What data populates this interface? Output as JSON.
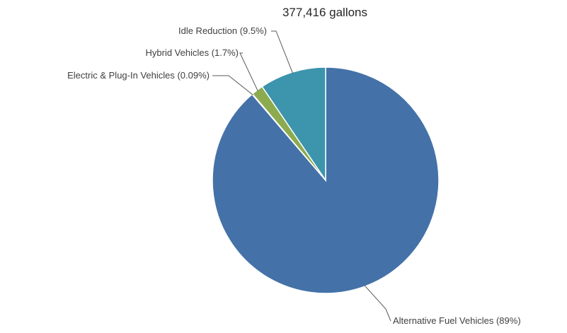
{
  "chart_data": {
    "type": "pie",
    "title": "377,416 gallons",
    "slices": [
      {
        "label": "Alternative Fuel Vehicles (89%)",
        "value": 89,
        "color": "#4472a8"
      },
      {
        "label": "Electric & Plug-In Vehicles (0.09%)",
        "value": 0.09,
        "color": "#3b7fa6"
      },
      {
        "label": "Hybrid Vehicles (1.7%)",
        "value": 1.7,
        "color": "#8cab4f"
      },
      {
        "label": "Idle Reduction (9.5%)",
        "value": 9.5,
        "color": "#3c94ad"
      }
    ],
    "legend": "none"
  }
}
